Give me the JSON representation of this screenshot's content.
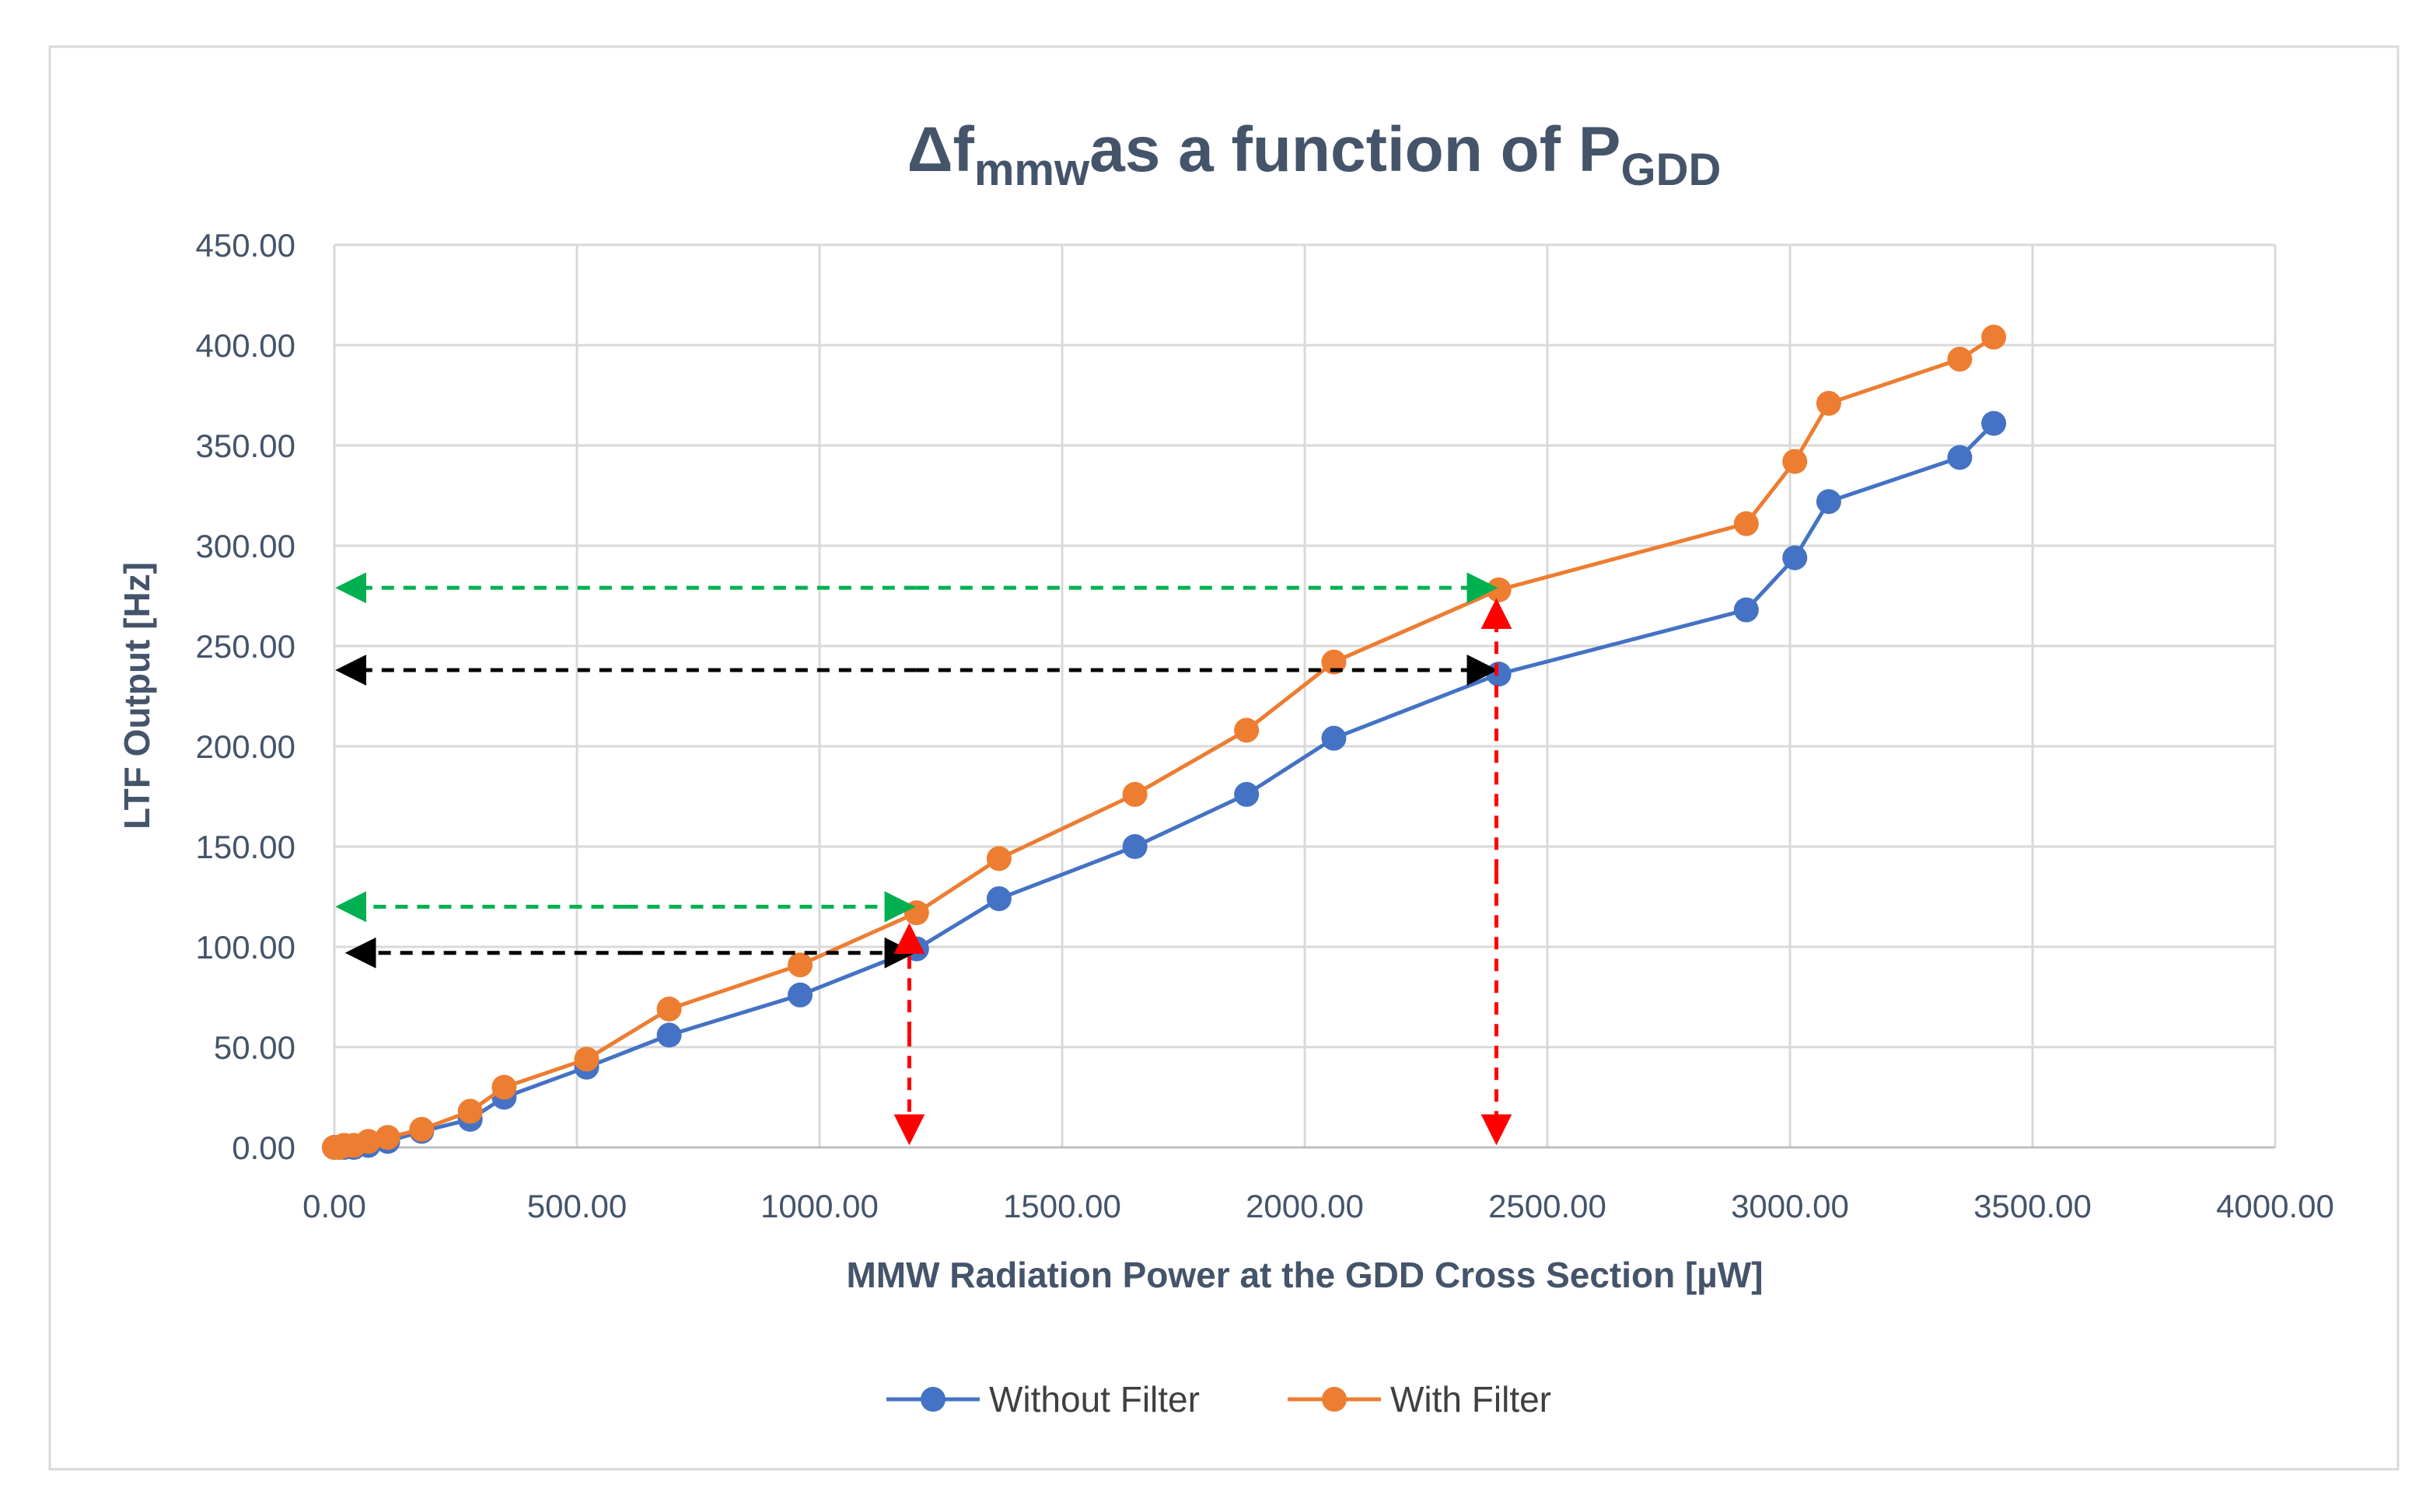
{
  "chart_data": {
    "type": "line",
    "title": {
      "delta": "Δ",
      "f": "f",
      "f_sub": "mmw",
      "middle": "as a function of P",
      "p_sub": "GDD"
    },
    "xlabel": "MMW Radiation Power at the GDD Cross Section [µW]",
    "ylabel": "LTF Output [Hz]",
    "xlim": [
      0,
      4000
    ],
    "ylim": [
      0,
      450
    ],
    "x_ticks": [
      0,
      500,
      1000,
      1500,
      2000,
      2500,
      3000,
      3500,
      4000
    ],
    "x_tick_labels": [
      "0.00",
      "500.00",
      "1000.00",
      "1500.00",
      "2000.00",
      "2500.00",
      "3000.00",
      "3500.00",
      "4000.00"
    ],
    "y_ticks": [
      0,
      50,
      100,
      150,
      200,
      250,
      300,
      350,
      400,
      450
    ],
    "y_tick_labels": [
      "0.00",
      "50.00",
      "100.00",
      "150.00",
      "200.00",
      "250.00",
      "300.00",
      "350.00",
      "400.00",
      "450.00"
    ],
    "grid": true,
    "legend_position": "bottom",
    "series": [
      {
        "name": "Without Filter",
        "color": "#4472C4",
        "x": [
          0,
          10,
          20,
          40,
          70,
          110,
          180,
          280,
          350,
          520,
          690,
          960,
          1200,
          1370,
          1650,
          1880,
          2060,
          2400,
          2910,
          3010,
          3080,
          3350,
          3420
        ],
        "y": [
          0,
          0,
          0,
          0,
          1,
          3,
          8,
          14,
          25,
          40,
          56,
          76,
          99,
          124,
          150,
          176,
          204,
          236,
          268,
          294,
          322,
          344,
          361
        ]
      },
      {
        "name": "With Filter",
        "color": "#ED7D31",
        "x": [
          0,
          10,
          20,
          40,
          70,
          110,
          180,
          280,
          350,
          520,
          690,
          960,
          1200,
          1370,
          1650,
          1880,
          2060,
          2400,
          2910,
          3010,
          3080,
          3350,
          3420
        ],
        "y": [
          0,
          0,
          1,
          1,
          3,
          5,
          9,
          18,
          30,
          44,
          69,
          91,
          117,
          144,
          176,
          208,
          242,
          278,
          311,
          342,
          371,
          393,
          404
        ]
      }
    ],
    "annotations": {
      "arrows": [
        {
          "kind": "horizontal",
          "color": "#00B050",
          "y": 279,
          "x_from": 2390,
          "x_to": 10
        },
        {
          "kind": "horizontal",
          "color": "#000000",
          "y": 238,
          "x_from": 2390,
          "x_to": 10
        },
        {
          "kind": "horizontal",
          "color": "#00B050",
          "y": 120,
          "x_from": 1190,
          "x_to": 10
        },
        {
          "kind": "horizontal",
          "color": "#000000",
          "y": 97,
          "x_from": 1190,
          "x_to": 30
        },
        {
          "kind": "vertical",
          "color": "#FF0000",
          "x": 1185,
          "y_from": 110,
          "y_to": 3
        },
        {
          "kind": "vertical",
          "color": "#FF0000",
          "x": 2395,
          "y_from": 272,
          "y_to": 3
        }
      ]
    }
  }
}
